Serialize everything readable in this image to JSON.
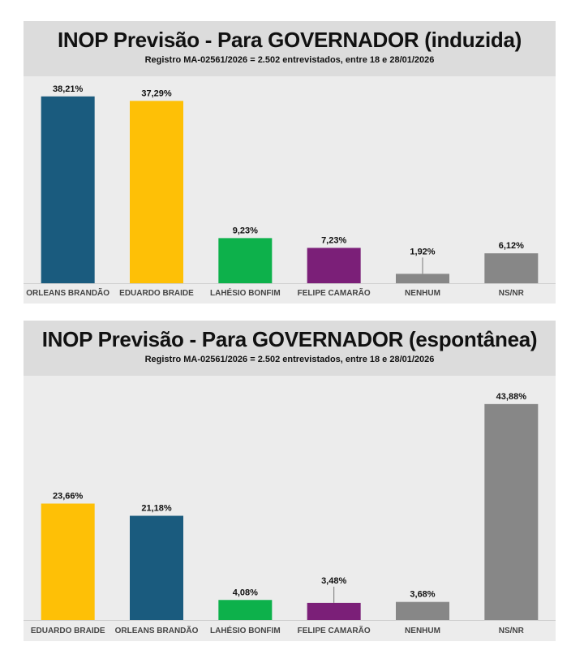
{
  "chart_data": [
    {
      "type": "bar",
      "title": "INOP Previsão - Para GOVERNADOR (induzida)",
      "subtitle": "Registro MA-02561/2026 = 2.502 entrevistados, entre 18 e 28/01/2026",
      "categories": [
        "ORLEANS BRANDÃO",
        "EDUARDO BRAIDE",
        "LAHÉSIO BONFIM",
        "FELIPE CAMARÃO",
        "NENHUM",
        "NS/NR"
      ],
      "values": [
        38.21,
        37.29,
        9.23,
        7.23,
        1.92,
        6.12
      ],
      "value_labels": [
        "38,21%",
        "37,29%",
        "9,23%",
        "7,23%",
        "1,92%",
        "6,12%"
      ],
      "colors": [
        "#1a5b7e",
        "#fec006",
        "#0db14b",
        "#7b1f78",
        "#878787",
        "#878787"
      ],
      "ylim": [
        0,
        40
      ],
      "grid": false,
      "xlabel": "",
      "ylabel": ""
    },
    {
      "type": "bar",
      "title": "INOP Previsão - Para GOVERNADOR (espontânea)",
      "subtitle": "Registro MA-02561/2026 = 2.502 entrevistados, entre 18 e 28/01/2026",
      "categories": [
        "EDUARDO BRAIDE",
        "ORLEANS BRANDÃO",
        "LAHÉSIO BONFIM",
        "FELIPE CAMARÃO",
        "NENHUM",
        "NS/NR"
      ],
      "values": [
        23.66,
        21.18,
        4.08,
        3.48,
        3.68,
        43.88
      ],
      "value_labels": [
        "23,66%",
        "21,18%",
        "4,08%",
        "3,48%",
        "3,68%",
        "43,88%"
      ],
      "colors": [
        "#fec006",
        "#1a5b7e",
        "#0db14b",
        "#7b1f78",
        "#878787",
        "#878787"
      ],
      "ylim": [
        0,
        46
      ],
      "grid": false,
      "xlabel": "",
      "ylabel": ""
    }
  ]
}
